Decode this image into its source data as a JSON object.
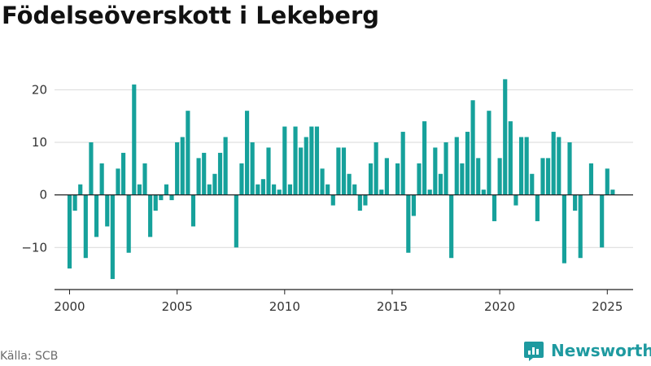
{
  "title": "Födelseöverskott i Lekeberg",
  "source": "Källa: SCB",
  "brand": {
    "name": "Newsworthy",
    "icon": "newsworthy-logo-icon",
    "color": "#1e9aa0"
  },
  "chart_data": {
    "type": "bar",
    "title": "Födelseöverskott i Lekeberg",
    "xlabel": "",
    "ylabel": "",
    "bar_color": "#16a19b",
    "grid": true,
    "xlim": [
      1999.3,
      2026.2
    ],
    "ylim": [
      -18,
      25
    ],
    "xticks": [
      2000,
      2005,
      2010,
      2015,
      2020,
      2025
    ],
    "yticks": [
      -10,
      0,
      10,
      20
    ],
    "ytick_labels": [
      "−10",
      "0",
      "10",
      "20"
    ],
    "x_start": 2000.0,
    "x_step": 0.25,
    "values": [
      -14,
      -3,
      2,
      -12,
      10,
      -8,
      6,
      -6,
      -16,
      5,
      8,
      -11,
      21,
      2,
      6,
      -8,
      -3,
      -1,
      2,
      -1,
      10,
      11,
      16,
      -6,
      7,
      8,
      2,
      4,
      8,
      11,
      0,
      -10,
      6,
      16,
      10,
      2,
      3,
      9,
      2,
      1,
      13,
      2,
      13,
      9,
      11,
      13,
      13,
      5,
      2,
      -2,
      9,
      9,
      4,
      2,
      -3,
      -2,
      6,
      10,
      1,
      7,
      0,
      6,
      12,
      -11,
      -4,
      6,
      14,
      1,
      9,
      4,
      10,
      -12,
      11,
      6,
      12,
      18,
      7,
      1,
      16,
      -5,
      7,
      22,
      14,
      -2,
      11,
      11,
      4,
      -5,
      7,
      7,
      12,
      11,
      -13,
      10,
      -3,
      -12,
      0,
      6,
      0,
      -10,
      5,
      1
    ]
  }
}
